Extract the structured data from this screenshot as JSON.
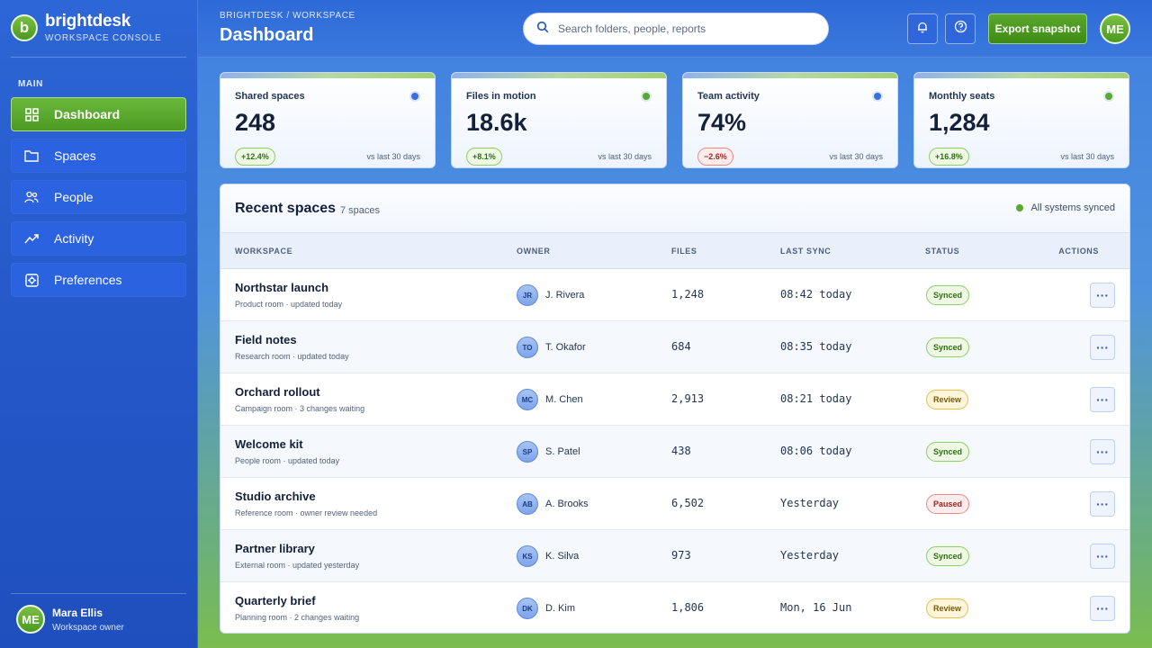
{
  "brand": {
    "logo_letter": "b",
    "name": "brightdesk",
    "subtitle": "WORKSPACE CONSOLE"
  },
  "sidebar": {
    "section_label": "MAIN",
    "items": [
      {
        "label": "Dashboard",
        "icon": "grid-icon",
        "active": true
      },
      {
        "label": "Spaces",
        "icon": "folder-icon"
      },
      {
        "label": "People",
        "icon": "people-icon"
      },
      {
        "label": "Activity",
        "icon": "trend-icon"
      },
      {
        "label": "Preferences",
        "icon": "gear-icon"
      }
    ],
    "user": {
      "initials": "ME",
      "name": "Mara Ellis",
      "role": "Workspace owner"
    }
  },
  "header": {
    "breadcrumb": "BRIGHTDESK / WORKSPACE",
    "title": "Dashboard",
    "search_placeholder": "Search folders, people, reports",
    "export_label": "Export snapshot",
    "avatar_initials": "ME"
  },
  "stats": [
    {
      "label": "Shared spaces",
      "value": "248",
      "change": "+12.4%",
      "trend": "up",
      "note": "vs last 30 days",
      "dot_color": "#3b6fe0"
    },
    {
      "label": "Files in motion",
      "value": "18.6k",
      "change": "+8.1%",
      "trend": "up",
      "note": "vs last 30 days",
      "dot_color": "#5aa82c"
    },
    {
      "label": "Team activity",
      "value": "74%",
      "change": "−2.6%",
      "trend": "down",
      "note": "vs last 30 days",
      "dot_color": "#3b6fe0"
    },
    {
      "label": "Monthly seats",
      "value": "1,284",
      "change": "+16.8%",
      "trend": "up",
      "note": "vs last 30 days",
      "dot_color": "#5aa82c"
    }
  ],
  "table": {
    "title": "Recent spaces",
    "count": "7 spaces",
    "sync_status": "All systems synced",
    "columns": [
      "WORKSPACE",
      "OWNER",
      "FILES",
      "LAST SYNC",
      "STATUS",
      "ACTIONS"
    ],
    "action_glyph": "···",
    "rows": [
      {
        "name": "Northstar launch",
        "sub": "Product room · updated today",
        "initials": "JR",
        "owner": "J. Rivera",
        "files": "1,248",
        "sync": "08:42 today",
        "status": "Synced"
      },
      {
        "name": "Field notes",
        "sub": "Research room · updated today",
        "initials": "TO",
        "owner": "T. Okafor",
        "files": "684",
        "sync": "08:35 today",
        "status": "Synced"
      },
      {
        "name": "Orchard rollout",
        "sub": "Campaign room · 3 changes waiting",
        "initials": "MC",
        "owner": "M. Chen",
        "files": "2,913",
        "sync": "08:21 today",
        "status": "Review"
      },
      {
        "name": "Welcome kit",
        "sub": "People room · updated today",
        "initials": "SP",
        "owner": "S. Patel",
        "files": "438",
        "sync": "08:06 today",
        "status": "Synced"
      },
      {
        "name": "Studio archive",
        "sub": "Reference room · owner review needed",
        "initials": "AB",
        "owner": "A. Brooks",
        "files": "6,502",
        "sync": "Yesterday",
        "status": "Paused"
      },
      {
        "name": "Partner library",
        "sub": "External room · updated yesterday",
        "initials": "KS",
        "owner": "K. Silva",
        "files": "973",
        "sync": "Yesterday",
        "status": "Synced"
      },
      {
        "name": "Quarterly brief",
        "sub": "Planning room · 2 changes waiting",
        "initials": "DK",
        "owner": "D. Kim",
        "files": "1,806",
        "sync": "Mon, 16 Jun",
        "status": "Review"
      }
    ]
  }
}
